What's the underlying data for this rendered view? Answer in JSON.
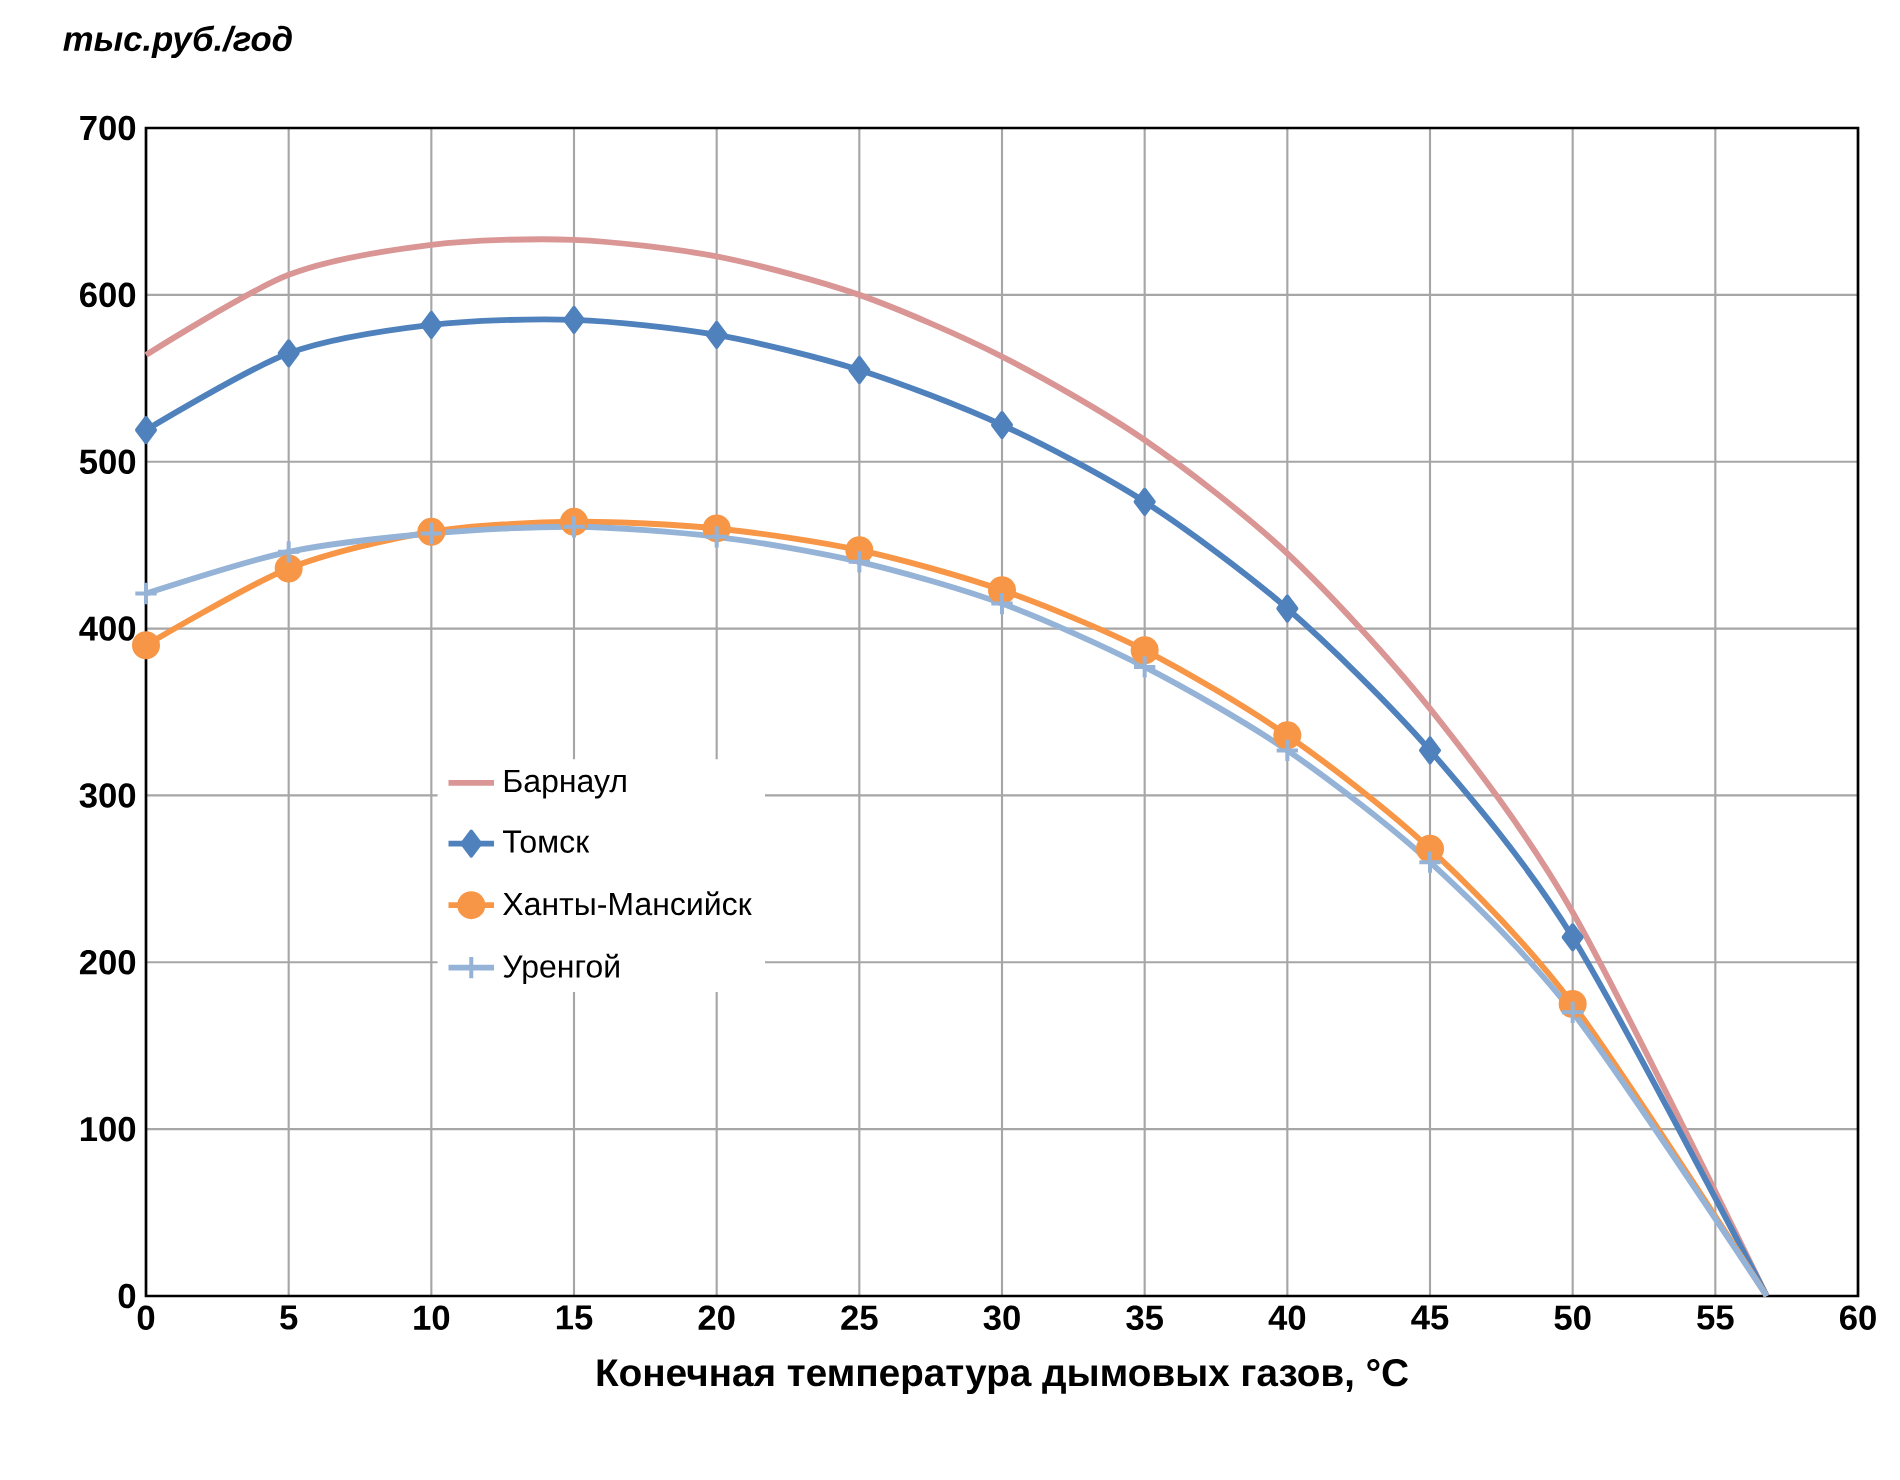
{
  "chart_data": {
    "type": "line",
    "ylabel": "тыс.руб./год",
    "xlabel": "Конечная температура дымовых газов, °C",
    "x": [
      0,
      5,
      10,
      15,
      20,
      25,
      30,
      35,
      40,
      45,
      50,
      56.8
    ],
    "series": [
      {
        "name": "Барнаул",
        "color": "#d99694",
        "marker": "none",
        "values": [
          564,
          612,
          630,
          633,
          623,
          600,
          563,
          513,
          445,
          352,
          230,
          0
        ]
      },
      {
        "name": "Томск",
        "color": "#4f81bd",
        "marker": "diamond",
        "values": [
          519,
          565,
          582,
          585,
          576,
          555,
          522,
          476,
          412,
          327,
          215,
          0
        ]
      },
      {
        "name": "Ханты-Мансийск",
        "color": "#f79646",
        "marker": "circle",
        "values": [
          390,
          436,
          458,
          464,
          460,
          447,
          423,
          387,
          336,
          268,
          175,
          0
        ]
      },
      {
        "name": "Уренгой",
        "color": "#95b3d7",
        "marker": "cross",
        "values": [
          421,
          446,
          457,
          461,
          455,
          440,
          415,
          377,
          327,
          260,
          170,
          0
        ]
      }
    ],
    "xlim": [
      0,
      60
    ],
    "ylim": [
      0,
      700
    ],
    "xticks": [
      0,
      5,
      10,
      15,
      20,
      25,
      30,
      35,
      40,
      45,
      50,
      55,
      60
    ],
    "yticks": [
      0,
      100,
      200,
      300,
      400,
      500,
      600,
      700
    ],
    "grid": true,
    "legend": "left",
    "line_style": "solid"
  }
}
